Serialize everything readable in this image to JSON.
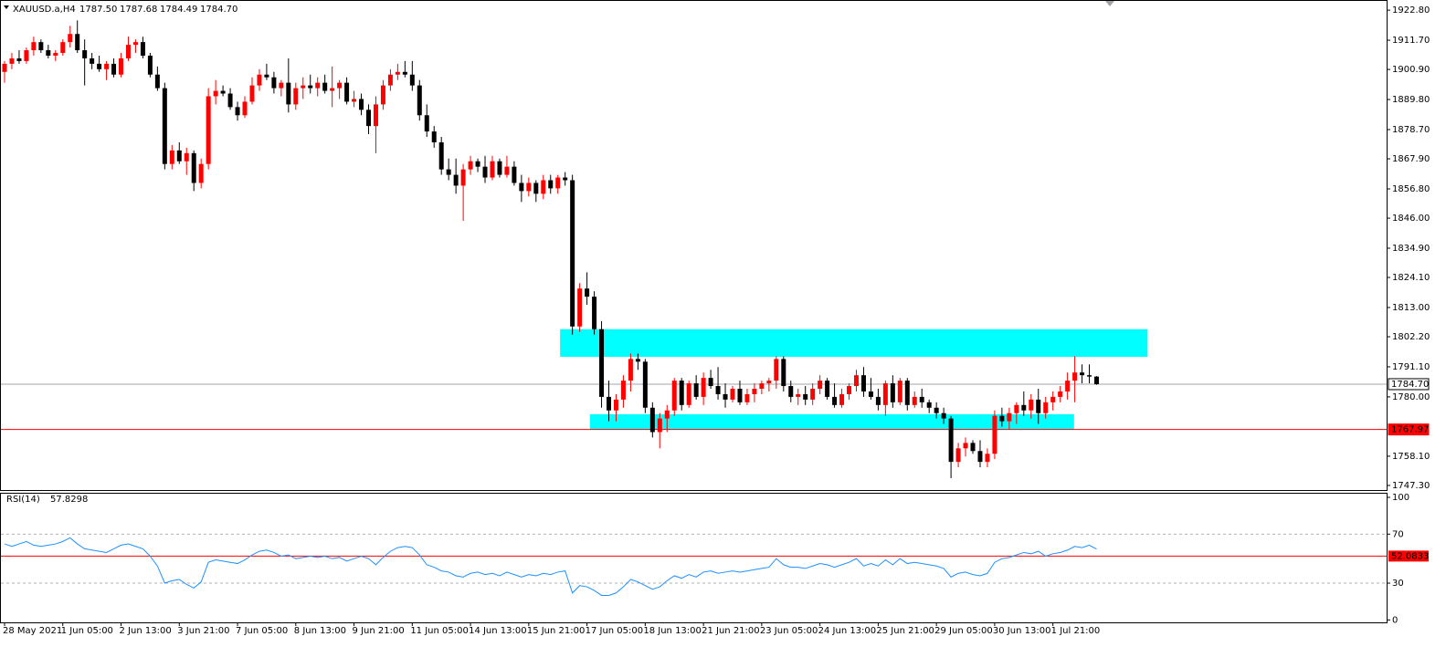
{
  "chart_data": [
    {
      "type": "candlestick",
      "title": "XAUUSD.a,H4",
      "title_values": [
        "1787.50",
        "1787.68",
        "1784.49",
        "1784.70"
      ],
      "up_color": "#ff0000",
      "down_color": "#000000",
      "ylim": [
        1745.6,
        1925.2
      ],
      "yticks": [
        {
          "value": 1922.8,
          "label": "1922.80"
        },
        {
          "value": 1911.7,
          "label": "1911.70"
        },
        {
          "value": 1900.9,
          "label": "1900.90"
        },
        {
          "value": 1889.8,
          "label": "1889.80"
        },
        {
          "value": 1878.7,
          "label": "1878.70"
        },
        {
          "value": 1867.9,
          "label": "1867.90"
        },
        {
          "value": 1856.8,
          "label": "1856.80"
        },
        {
          "value": 1846,
          "label": "1846.00"
        },
        {
          "value": 1834.9,
          "label": "1834.90"
        },
        {
          "value": 1824.1,
          "label": "1824.10"
        },
        {
          "value": 1813,
          "label": "1813.00"
        },
        {
          "value": 1802.2,
          "label": "1802.20"
        },
        {
          "value": 1791.1,
          "label": "1791.10"
        },
        {
          "value": 1780,
          "label": "1780.00"
        },
        {
          "value": 1758.1,
          "label": "1758.10"
        },
        {
          "value": 1747.3,
          "label": "1747.30"
        }
      ],
      "hlines": [
        {
          "value": 1784.7,
          "label": "1784.70",
          "color": "#a0a4a8"
        },
        {
          "value": 1767.97,
          "label": "1767.97",
          "color": "#ff0000"
        }
      ],
      "zones": [
        {
          "x": [
            76.3,
            157
          ],
          "y": [
            1794.8,
            1805
          ],
          "color": "#00ffff"
        },
        {
          "x": [
            80.4,
            146.9
          ],
          "y": [
            1768,
            1773.6
          ],
          "color": "#00ffff"
        }
      ],
      "ohlc": [
        [
          1900,
          1904,
          1896,
          1903
        ],
        [
          1903,
          1907,
          1901,
          1905
        ],
        [
          1905,
          1908,
          1903,
          1904
        ],
        [
          1904,
          1909,
          1903,
          1908
        ],
        [
          1908,
          1913,
          1906,
          1911
        ],
        [
          1911,
          1912,
          1907,
          1908
        ],
        [
          1908,
          1910,
          1905,
          1906
        ],
        [
          1906,
          1908,
          1904,
          1907
        ],
        [
          1907,
          1912,
          1906,
          1911
        ],
        [
          1911,
          1917,
          1909,
          1914
        ],
        [
          1914,
          1919,
          1907,
          1908
        ],
        [
          1908,
          1912,
          1895,
          1905
        ],
        [
          1905,
          1907,
          1901,
          1903
        ],
        [
          1903,
          1906,
          1900,
          1901
        ],
        [
          1901,
          1904,
          1897,
          1903
        ],
        [
          1903,
          1905,
          1898,
          1899
        ],
        [
          1899,
          1907,
          1898,
          1905
        ],
        [
          1905,
          1913,
          1904,
          1910
        ],
        [
          1910,
          1912,
          1907,
          1911
        ],
        [
          1911,
          1913,
          1905,
          1906
        ],
        [
          1906,
          1907,
          1898,
          1899
        ],
        [
          1899,
          1902,
          1893,
          1894
        ],
        [
          1894,
          1896,
          1864,
          1866
        ],
        [
          1866,
          1873,
          1864,
          1871
        ],
        [
          1871,
          1874,
          1866,
          1867
        ],
        [
          1867,
          1872,
          1862,
          1870
        ],
        [
          1870,
          1871,
          1856,
          1859
        ],
        [
          1859,
          1868,
          1857,
          1866
        ],
        [
          1866,
          1894,
          1864,
          1891
        ],
        [
          1891,
          1897,
          1888,
          1893
        ],
        [
          1893,
          1895,
          1891,
          1892
        ],
        [
          1892,
          1894,
          1886,
          1887
        ],
        [
          1887,
          1889,
          1882,
          1884
        ],
        [
          1884,
          1891,
          1883,
          1889
        ],
        [
          1889,
          1898,
          1888,
          1895
        ],
        [
          1895,
          1901,
          1893,
          1899
        ],
        [
          1899,
          1903,
          1897,
          1898
        ],
        [
          1898,
          1900,
          1892,
          1894
        ],
        [
          1894,
          1897,
          1891,
          1896
        ],
        [
          1896,
          1905,
          1885,
          1888
        ],
        [
          1888,
          1896,
          1886,
          1894
        ],
        [
          1894,
          1898,
          1890,
          1895
        ],
        [
          1895,
          1899,
          1892,
          1894
        ],
        [
          1894,
          1898,
          1891,
          1896
        ],
        [
          1896,
          1899,
          1892,
          1893
        ],
        [
          1893,
          1902,
          1887,
          1894
        ],
        [
          1894,
          1897,
          1890,
          1896
        ],
        [
          1896,
          1898,
          1888,
          1889
        ],
        [
          1889,
          1893,
          1887,
          1890
        ],
        [
          1890,
          1892,
          1884,
          1886
        ],
        [
          1886,
          1888,
          1877,
          1880
        ],
        [
          1880,
          1891,
          1870,
          1888
        ],
        [
          1888,
          1897,
          1886,
          1895
        ],
        [
          1895,
          1901,
          1893,
          1899
        ],
        [
          1899,
          1903,
          1897,
          1900
        ],
        [
          1900,
          1904,
          1898,
          1899
        ],
        [
          1899,
          1904,
          1893,
          1895
        ],
        [
          1895,
          1897,
          1882,
          1884
        ],
        [
          1884,
          1888,
          1876,
          1878
        ],
        [
          1878,
          1880,
          1872,
          1874
        ],
        [
          1874,
          1876,
          1862,
          1864
        ],
        [
          1864,
          1868,
          1860,
          1862
        ],
        [
          1862,
          1868,
          1855,
          1858
        ],
        [
          1858,
          1866,
          1845,
          1864
        ],
        [
          1864,
          1869,
          1862,
          1867
        ],
        [
          1867,
          1868,
          1863,
          1865
        ],
        [
          1865,
          1869,
          1859,
          1861
        ],
        [
          1861,
          1869,
          1860,
          1867
        ],
        [
          1867,
          1868,
          1861,
          1862
        ],
        [
          1862,
          1869,
          1861,
          1865
        ],
        [
          1865,
          1867,
          1858,
          1859
        ],
        [
          1859,
          1862,
          1852,
          1856
        ],
        [
          1856,
          1861,
          1854,
          1859
        ],
        [
          1859,
          1860,
          1852,
          1855
        ],
        [
          1855,
          1862,
          1853,
          1860
        ],
        [
          1860,
          1862,
          1855,
          1857
        ],
        [
          1857,
          1862,
          1855,
          1861
        ],
        [
          1861,
          1863,
          1858,
          1860
        ],
        [
          1860,
          1862,
          1803,
          1806
        ],
        [
          1806,
          1822,
          1804,
          1820
        ],
        [
          1820,
          1826,
          1814,
          1817
        ],
        [
          1817,
          1819,
          1803,
          1805
        ],
        [
          1805,
          1808,
          1776,
          1780
        ],
        [
          1780,
          1786,
          1771,
          1775
        ],
        [
          1775,
          1781,
          1771,
          1779
        ],
        [
          1779,
          1788,
          1776,
          1786
        ],
        [
          1786,
          1796,
          1782,
          1794
        ],
        [
          1794,
          1796,
          1790,
          1793
        ],
        [
          1793,
          1794,
          1774,
          1776
        ],
        [
          1776,
          1778,
          1765,
          1767
        ],
        [
          1767,
          1774,
          1761,
          1772
        ],
        [
          1772,
          1777,
          1767,
          1775
        ],
        [
          1775,
          1787,
          1773,
          1786
        ],
        [
          1786,
          1787,
          1775,
          1777
        ],
        [
          1777,
          1786,
          1776,
          1785
        ],
        [
          1785,
          1788,
          1779,
          1780
        ],
        [
          1780,
          1789,
          1777,
          1787
        ],
        [
          1787,
          1790,
          1783,
          1784
        ],
        [
          1784,
          1791,
          1779,
          1781
        ],
        [
          1781,
          1785,
          1776,
          1779
        ],
        [
          1779,
          1784,
          1778,
          1783
        ],
        [
          1783,
          1786,
          1777,
          1778
        ],
        [
          1778,
          1783,
          1777,
          1781
        ],
        [
          1781,
          1785,
          1778,
          1783
        ],
        [
          1783,
          1786,
          1781,
          1785
        ],
        [
          1785,
          1787,
          1782,
          1786
        ],
        [
          1786,
          1795,
          1783,
          1794
        ],
        [
          1794,
          1795,
          1782,
          1784
        ],
        [
          1784,
          1786,
          1778,
          1780
        ],
        [
          1780,
          1783,
          1777,
          1781
        ],
        [
          1781,
          1784,
          1777,
          1779
        ],
        [
          1779,
          1785,
          1777,
          1783
        ],
        [
          1783,
          1788,
          1781,
          1786
        ],
        [
          1786,
          1787,
          1779,
          1780
        ],
        [
          1780,
          1785,
          1776,
          1777
        ],
        [
          1777,
          1783,
          1776,
          1781
        ],
        [
          1781,
          1785,
          1779,
          1784
        ],
        [
          1784,
          1790,
          1782,
          1788
        ],
        [
          1788,
          1791,
          1780,
          1782
        ],
        [
          1782,
          1787,
          1779,
          1780
        ],
        [
          1780,
          1783,
          1775,
          1777
        ],
        [
          1777,
          1786,
          1773,
          1785
        ],
        [
          1785,
          1788,
          1776,
          1778
        ],
        [
          1778,
          1787,
          1777,
          1786
        ],
        [
          1786,
          1787,
          1775,
          1777
        ],
        [
          1777,
          1782,
          1776,
          1780
        ],
        [
          1780,
          1783,
          1776,
          1778
        ],
        [
          1778,
          1779,
          1774,
          1776
        ],
        [
          1776,
          1778,
          1772,
          1774
        ],
        [
          1774,
          1776,
          1770,
          1772
        ],
        [
          1772,
          1773,
          1750,
          1756
        ],
        [
          1756,
          1763,
          1754,
          1761
        ],
        [
          1761,
          1765,
          1758,
          1763
        ],
        [
          1763,
          1764,
          1759,
          1760
        ],
        [
          1760,
          1764,
          1754,
          1756
        ],
        [
          1756,
          1761,
          1754,
          1759
        ],
        [
          1759,
          1775,
          1757,
          1773
        ],
        [
          1773,
          1776,
          1769,
          1771
        ],
        [
          1771,
          1776,
          1768,
          1774
        ],
        [
          1774,
          1778,
          1770,
          1777
        ],
        [
          1777,
          1782,
          1773,
          1775
        ],
        [
          1775,
          1781,
          1772,
          1779
        ],
        [
          1779,
          1783,
          1770,
          1774
        ],
        [
          1774,
          1780,
          1772,
          1778
        ],
        [
          1778,
          1782,
          1775,
          1780
        ],
        [
          1780,
          1784,
          1778,
          1782
        ],
        [
          1782,
          1789,
          1779,
          1786
        ],
        [
          1786,
          1795,
          1778,
          1789
        ],
        [
          1789,
          1792,
          1785,
          1788
        ],
        [
          1788,
          1792,
          1785,
          1787.5
        ],
        [
          1787.5,
          1787.68,
          1784.49,
          1784.7
        ]
      ]
    },
    {
      "type": "line",
      "title": "RSI(14)",
      "color": "#1e90ff",
      "ylim": [
        -2,
        103
      ],
      "yticks": [
        100,
        70,
        30,
        0
      ],
      "levels": [
        70,
        30
      ],
      "hlines": [
        {
          "value": 52.0833,
          "color": "#ff0000"
        }
      ],
      "categories": [
        "28 May 2021",
        null,
        null,
        null,
        null,
        null,
        null,
        null,
        "1 Jun 05:00",
        null,
        null,
        null,
        null,
        null,
        null,
        null,
        "2 Jun 13:00",
        null,
        null,
        null,
        null,
        null,
        null,
        null,
        "3 Jun 21:00",
        null,
        null,
        null,
        null,
        null,
        null,
        null,
        "7 Jun 05:00",
        null,
        null,
        null,
        null,
        null,
        null,
        null,
        "8 Jun 13:00",
        null,
        null,
        null,
        null,
        null,
        null,
        null,
        "9 Jun 21:00",
        null,
        null,
        null,
        null,
        null,
        null,
        null,
        "11 Jun 05:00",
        null,
        null,
        null,
        null,
        null,
        null,
        null,
        "14 Jun 13:00",
        null,
        null,
        null,
        null,
        null,
        null,
        null,
        "15 Jun 21:00",
        null,
        null,
        null,
        null,
        null,
        null,
        null,
        "17 Jun 05:00",
        null,
        null,
        null,
        null,
        null,
        null,
        null,
        "18 Jun 13:00",
        null,
        null,
        null,
        null,
        null,
        null,
        null,
        "21 Jun 21:00",
        null,
        null,
        null,
        null,
        null,
        null,
        null,
        "23 Jun 05:00",
        null,
        null,
        null,
        null,
        null,
        null,
        null,
        "24 Jun 13:00",
        null,
        null,
        null,
        null,
        null,
        null,
        null,
        "25 Jun 21:00",
        null,
        null,
        null,
        null,
        null,
        null,
        null,
        "29 Jun 05:00",
        null,
        null,
        null,
        null,
        null,
        null,
        null,
        "30 Jun 13:00",
        null,
        null,
        null,
        null,
        null,
        null,
        null,
        "1 Jul 21:00",
        null,
        null,
        null,
        null,
        null,
        null
      ],
      "values": [
        62,
        60,
        62,
        64,
        61,
        60,
        61,
        62,
        64,
        67,
        62,
        58,
        57,
        56,
        55,
        58,
        61,
        62,
        60,
        58,
        52,
        44,
        30,
        32,
        33,
        29,
        26,
        31,
        47,
        49,
        48,
        47,
        46,
        49,
        53,
        56,
        57,
        55,
        52,
        53,
        50,
        51,
        52,
        51,
        52,
        50,
        51,
        48,
        50,
        52,
        50,
        45,
        51,
        56,
        59,
        60,
        59,
        53,
        45,
        43,
        40,
        39,
        36,
        35,
        38,
        39,
        37,
        38,
        36,
        39,
        37,
        35,
        37,
        36,
        38,
        37,
        39,
        40,
        22,
        28,
        27,
        24,
        20,
        20,
        22,
        27,
        33,
        31,
        28,
        25,
        27,
        32,
        36,
        34,
        37,
        35,
        39,
        40,
        38,
        39,
        40,
        39,
        40,
        41,
        42,
        43,
        50,
        45,
        43,
        43,
        42,
        44,
        46,
        45,
        43,
        45,
        47,
        50,
        44,
        46,
        44,
        49,
        45,
        50,
        46,
        47,
        46,
        45,
        44,
        42,
        35,
        38,
        39,
        37,
        36,
        38,
        47,
        50,
        51,
        53,
        55,
        54,
        56,
        52,
        54,
        55,
        57,
        60,
        59,
        61,
        57.8298
      ]
    }
  ]
}
